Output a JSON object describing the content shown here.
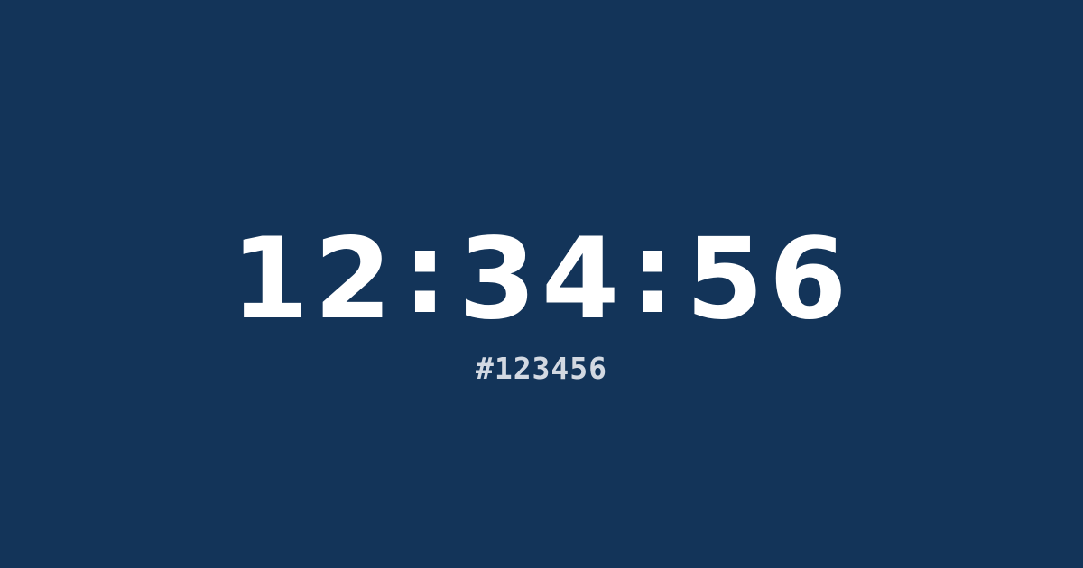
{
  "clock": {
    "hours": "12",
    "minutes": "34",
    "seconds": "56",
    "separator": ":"
  },
  "hex_label": "#123456",
  "colors": {
    "background": "#133459",
    "clock_text": "#ffffff",
    "hex_text": "#d3d9e2"
  }
}
